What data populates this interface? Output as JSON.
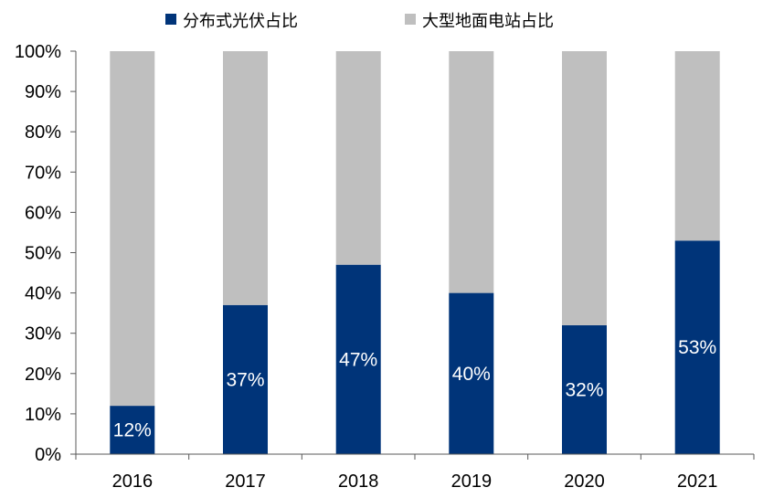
{
  "chart_data": {
    "type": "bar",
    "stacked": true,
    "percent_stacked": true,
    "categories": [
      "2016",
      "2017",
      "2018",
      "2019",
      "2020",
      "2021"
    ],
    "series": [
      {
        "name": "分布式光伏占比",
        "color": "#003479",
        "values": [
          12,
          37,
          47,
          40,
          32,
          53
        ],
        "show_data_labels": true
      },
      {
        "name": "大型地面电站占比",
        "color": "#BFBFBF",
        "values": [
          88,
          63,
          53,
          60,
          68,
          47
        ],
        "show_data_labels": false
      }
    ],
    "ylim": [
      0,
      100
    ],
    "yticks": [
      0,
      10,
      20,
      30,
      40,
      50,
      60,
      70,
      80,
      90,
      100
    ],
    "ytick_labels": [
      "0%",
      "10%",
      "20%",
      "30%",
      "40%",
      "50%",
      "60%",
      "70%",
      "80%",
      "90%",
      "100%"
    ],
    "title": "",
    "xlabel": "",
    "ylabel": "",
    "grid": false,
    "legend_position": "top"
  }
}
